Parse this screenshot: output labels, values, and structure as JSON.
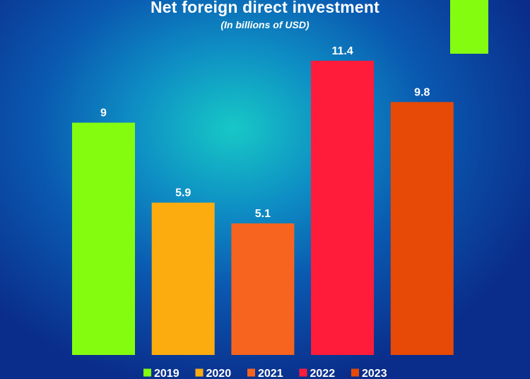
{
  "chart_data": {
    "type": "bar",
    "title": "Net foreign direct investment",
    "subtitle": "(In billions of USD)",
    "categories": [
      "2019",
      "2020",
      "2021",
      "2022",
      "2023"
    ],
    "values": [
      9,
      5.9,
      5.1,
      11.4,
      9.8
    ],
    "value_labels": [
      "9",
      "5.9",
      "5.1",
      "11.4",
      "9.8"
    ],
    "colors": [
      "#84fc10",
      "#fdac10",
      "#f6641f",
      "#ff1c3b",
      "#e64a06"
    ],
    "legend": [
      "2019",
      "2020",
      "2021",
      "2022",
      "2023"
    ],
    "legend_position": "bottom",
    "grid": false,
    "ylim": [
      0,
      12
    ],
    "xlabel": "",
    "ylabel": ""
  },
  "decoration": {
    "corner_box_color": "#84fc10"
  }
}
